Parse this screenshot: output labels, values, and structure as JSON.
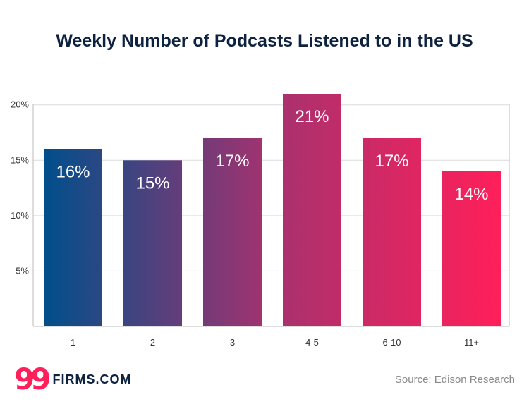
{
  "chart_data": {
    "type": "bar",
    "title": "Weekly Number of Podcasts Listened to in the US",
    "categories": [
      "1",
      "2",
      "3",
      "4-5",
      "6-10",
      "11+"
    ],
    "values": [
      16,
      15,
      17,
      21,
      17,
      14
    ],
    "data_labels": [
      "16%",
      "15%",
      "17%",
      "21%",
      "17%",
      "14%"
    ],
    "xlabel": "",
    "ylabel": "",
    "ylim": [
      0,
      21
    ],
    "yticks": [
      5,
      10,
      15,
      20
    ],
    "ytick_labels": [
      "5%",
      "10%",
      "15%",
      "20%"
    ],
    "grid": true,
    "legend": "none",
    "bar_colors": [
      "#004f8b",
      "#35477d",
      "#6c3c78",
      "#a6326f",
      "#d52b67",
      "#ff1f5a"
    ]
  },
  "branding": {
    "logo_mark": "99",
    "logo_text": "FIRMS.COM",
    "logo_icon": "99firms-logo-icon"
  },
  "footer": {
    "source": "Source: Edison Research"
  }
}
